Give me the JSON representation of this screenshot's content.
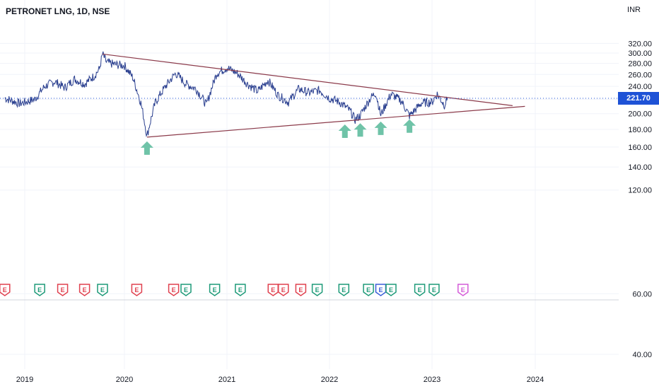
{
  "header": {
    "symbol": "PETRONET LNG, 1D, NSE",
    "currency": "INR"
  },
  "last_price": "221.70",
  "colors": {
    "price_line": "#2a3f8f",
    "trendline": "#8b3a4a",
    "arrow": "#6fc3a8",
    "price_tag": "#1e52d6",
    "price_dotted": "#1e52d6",
    "event_red": "#e0414f",
    "event_green": "#1d9a78",
    "event_blue": "#3a5fd8",
    "event_pink": "#d45bd8"
  },
  "chart_data": {
    "type": "line",
    "title": "",
    "xlabel": "",
    "ylabel": "",
    "x_tick_labels": [
      "2019",
      "2020",
      "2021",
      "2022",
      "2023",
      "2024"
    ],
    "y_tick_labels": [
      "320.00",
      "300.00",
      "280.00",
      "260.00",
      "240.00",
      "220.00",
      "200.00",
      "180.00",
      "160.00",
      "140.00",
      "120.00",
      "60.00",
      "40.00"
    ],
    "series": [
      {
        "values_by_year": [
          [
            2018.8,
            222
          ],
          [
            2018.95,
            214
          ],
          [
            2019.1,
            220
          ],
          [
            2019.2,
            240
          ],
          [
            2019.3,
            248
          ],
          [
            2019.4,
            238
          ],
          [
            2019.5,
            252
          ],
          [
            2019.6,
            244
          ],
          [
            2019.7,
            258
          ],
          [
            2019.75,
            270
          ],
          [
            2019.78,
            298
          ],
          [
            2019.82,
            282
          ],
          [
            2019.9,
            278
          ],
          [
            2020.0,
            276
          ],
          [
            2020.08,
            255
          ],
          [
            2020.16,
            215
          ],
          [
            2020.22,
            172
          ],
          [
            2020.3,
            215
          ],
          [
            2020.4,
            240
          ],
          [
            2020.5,
            262
          ],
          [
            2020.6,
            244
          ],
          [
            2020.7,
            236
          ],
          [
            2020.8,
            212
          ],
          [
            2020.9,
            262
          ],
          [
            2021.0,
            272
          ],
          [
            2021.1,
            262
          ],
          [
            2021.2,
            244
          ],
          [
            2021.3,
            232
          ],
          [
            2021.4,
            250
          ],
          [
            2021.5,
            226
          ],
          [
            2021.6,
            216
          ],
          [
            2021.7,
            236
          ],
          [
            2021.8,
            230
          ],
          [
            2021.9,
            234
          ],
          [
            2022.0,
            222
          ],
          [
            2022.1,
            216
          ],
          [
            2022.2,
            204
          ],
          [
            2022.25,
            192
          ],
          [
            2022.3,
            198
          ],
          [
            2022.4,
            222
          ],
          [
            2022.45,
            230
          ],
          [
            2022.5,
            198
          ],
          [
            2022.6,
            228
          ],
          [
            2022.7,
            218
          ],
          [
            2022.78,
            197
          ],
          [
            2022.9,
            215
          ],
          [
            2023.0,
            216
          ],
          [
            2023.05,
            228
          ],
          [
            2023.12,
            212
          ],
          [
            2023.15,
            222
          ]
        ]
      }
    ],
    "trendlines": [
      {
        "from": [
          2019.78,
          298
        ],
        "to": [
          2023.78,
          211
        ]
      },
      {
        "from": [
          2020.22,
          171
        ],
        "to": [
          2023.9,
          210
        ]
      }
    ],
    "support_arrows": [
      2020.22,
      2022.15,
      2022.3,
      2022.5,
      2022.78
    ],
    "y_scale": "log",
    "ylim": [
      35,
      335
    ],
    "xlim": [
      2018.78,
      2024.3
    ],
    "events": [
      {
        "year": 2018.8,
        "type": "dividend-red"
      },
      {
        "year": 2019.15,
        "type": "earnings-green"
      },
      {
        "year": 2019.38,
        "type": "dividend-red"
      },
      {
        "year": 2019.6,
        "type": "dividend-red"
      },
      {
        "year": 2019.78,
        "type": "earnings-green"
      },
      {
        "year": 2020.12,
        "type": "dividend-red"
      },
      {
        "year": 2020.48,
        "type": "dividend-red"
      },
      {
        "year": 2020.6,
        "type": "earnings-green"
      },
      {
        "year": 2020.88,
        "type": "earnings-green"
      },
      {
        "year": 2021.13,
        "type": "earnings-green"
      },
      {
        "year": 2021.45,
        "type": "dividend-red"
      },
      {
        "year": 2021.55,
        "type": "dividend-red"
      },
      {
        "year": 2021.72,
        "type": "dividend-red"
      },
      {
        "year": 2021.88,
        "type": "earnings-green"
      },
      {
        "year": 2022.14,
        "type": "earnings-green"
      },
      {
        "year": 2022.38,
        "type": "earnings-green"
      },
      {
        "year": 2022.5,
        "type": "dividend-blue"
      },
      {
        "year": 2022.6,
        "type": "earnings-green"
      },
      {
        "year": 2022.88,
        "type": "earnings-green"
      },
      {
        "year": 2023.02,
        "type": "earnings-green"
      },
      {
        "year": 2023.3,
        "type": "earnings-pink"
      }
    ],
    "grid": true
  }
}
